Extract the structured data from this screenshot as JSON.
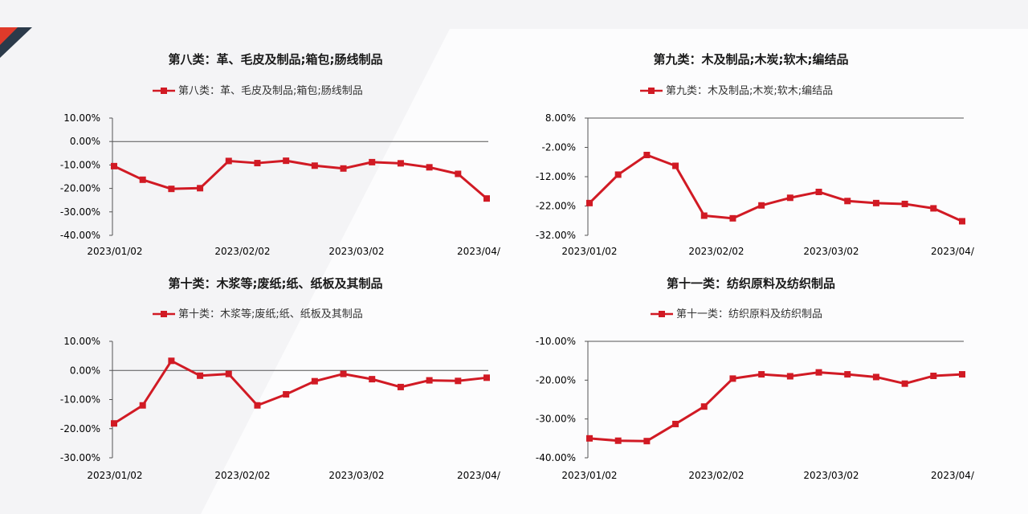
{
  "colors": {
    "series": "#d11a24",
    "accent_dark": "#2b3a4a",
    "accent_red": "#e03a2a"
  },
  "chart_data": [
    {
      "type": "line",
      "title": "第八类：革、毛皮及制品;箱包;肠线制品",
      "series": [
        {
          "name": "第八类：革、毛皮及制品;箱包;肠线制品",
          "values": [
            -0.105,
            -0.163,
            -0.202,
            -0.199,
            -0.083,
            -0.092,
            -0.082,
            -0.103,
            -0.115,
            -0.088,
            -0.093,
            -0.11,
            -0.138,
            -0.243
          ]
        }
      ],
      "yticks": [
        "10.00%",
        "0.00%",
        "-10.00%",
        "-20.00%",
        "-30.00%",
        "-40.00%"
      ],
      "ylim": [
        -0.4,
        0.1
      ],
      "xtick_labels": [
        "2023/01/02",
        "2023/02/02",
        "2023/03/02",
        "2023/04/"
      ]
    },
    {
      "type": "line",
      "title": "第九类：木及制品;木炭;软木;编结品",
      "series": [
        {
          "name": "第九类：木及制品;木炭;软木;编结品",
          "values": [
            -0.21,
            -0.113,
            -0.046,
            -0.083,
            -0.253,
            -0.262,
            -0.218,
            -0.192,
            -0.172,
            -0.203,
            -0.21,
            -0.213,
            -0.228,
            -0.272
          ]
        }
      ],
      "yticks": [
        "8.00%",
        "-2.00%",
        "-12.00%",
        "-22.00%",
        "-32.00%"
      ],
      "ylim": [
        -0.32,
        0.08
      ],
      "xtick_labels": [
        "2023/01/02",
        "2023/02/02",
        "2023/03/02",
        "2023/04/"
      ]
    },
    {
      "type": "line",
      "title": "第十类：木浆等;废纸;纸、纸板及其制品",
      "series": [
        {
          "name": "第十类：木浆等;废纸;纸、纸板及其制品",
          "values": [
            -0.182,
            -0.12,
            0.033,
            -0.018,
            -0.012,
            -0.12,
            -0.082,
            -0.037,
            -0.012,
            -0.03,
            -0.057,
            -0.034,
            -0.036,
            -0.025
          ]
        }
      ],
      "yticks": [
        "10.00%",
        "0.00%",
        "-10.00%",
        "-20.00%",
        "-30.00%"
      ],
      "ylim": [
        -0.3,
        0.1
      ],
      "xtick_labels": [
        "2023/01/02",
        "2023/02/02",
        "2023/03/02",
        "2023/04/"
      ]
    },
    {
      "type": "line",
      "title": "第十一类：纺织原料及纺织制品",
      "series": [
        {
          "name": "第十一类：纺织原料及纺织制品",
          "values": [
            -0.35,
            -0.356,
            -0.357,
            -0.313,
            -0.268,
            -0.196,
            -0.185,
            -0.19,
            -0.18,
            -0.185,
            -0.192,
            -0.209,
            -0.189,
            -0.185
          ]
        }
      ],
      "yticks": [
        "-10.00%",
        "-20.00%",
        "-30.00%",
        "-40.00%"
      ],
      "ylim": [
        -0.4,
        -0.1
      ],
      "xtick_labels": [
        "2023/01/02",
        "2023/02/02",
        "2023/03/02",
        "2023/04/"
      ]
    }
  ]
}
